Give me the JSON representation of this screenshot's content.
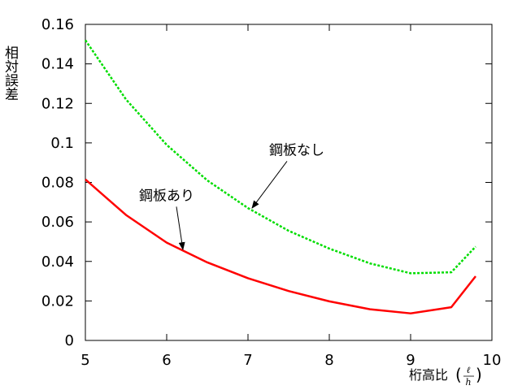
{
  "chart_data": {
    "type": "line",
    "title": "",
    "xlabel": "桁高比",
    "xlabel_fraction": {
      "numerator": "ℓ",
      "denominator": "h"
    },
    "ylabel": "相対誤差",
    "xlim": [
      5,
      10
    ],
    "ylim": [
      0,
      0.16
    ],
    "xticks": [
      5,
      6,
      7,
      8,
      9,
      10
    ],
    "yticks": [
      0,
      0.02,
      0.04,
      0.06,
      0.08,
      0.1,
      0.12,
      0.14,
      0.16
    ],
    "xtick_labels": [
      "5",
      "6",
      "7",
      "8",
      "9",
      "10"
    ],
    "ytick_labels": [
      "0",
      "0.02",
      "0.04",
      "0.06",
      "0.08",
      "0.1",
      "0.12",
      "0.14",
      "0.16"
    ],
    "grid": false,
    "series": [
      {
        "name": "鋼板なし",
        "color": "#00dd00",
        "style": "dotted",
        "x": [
          5,
          5.5,
          6,
          6.5,
          7,
          7.5,
          8,
          8.5,
          9,
          9.5,
          9.8
        ],
        "y": [
          0.152,
          0.122,
          0.099,
          0.081,
          0.067,
          0.0555,
          0.0465,
          0.039,
          0.034,
          0.0345,
          0.0475
        ]
      },
      {
        "name": "鋼板あり",
        "color": "#ff0000",
        "style": "solid",
        "x": [
          5,
          5.5,
          6,
          6.5,
          7,
          7.5,
          8,
          8.5,
          9,
          9.5,
          9.8
        ],
        "y": [
          0.0815,
          0.0635,
          0.0495,
          0.0395,
          0.0315,
          0.025,
          0.0198,
          0.0158,
          0.0137,
          0.0168,
          0.0325
        ]
      }
    ],
    "annotations": [
      {
        "text": "鋼板なし",
        "text_at": [
          7.6,
          0.094
        ],
        "arrow_to": [
          7.05,
          0.067
        ]
      },
      {
        "text": "鋼板あり",
        "text_at": [
          6.0,
          0.071
        ],
        "arrow_to": [
          6.2,
          0.046
        ]
      }
    ]
  }
}
